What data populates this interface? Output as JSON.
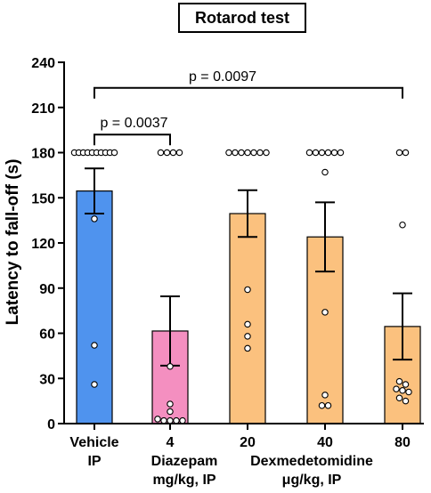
{
  "chart_data": {
    "type": "bar",
    "title": "Rotarod test",
    "ylabel": "Latency to fall-off (s)",
    "xlabel": "",
    "ylim": [
      0,
      240
    ],
    "yticks": [
      0,
      30,
      60,
      90,
      120,
      150,
      180,
      210,
      240
    ],
    "categories": [
      "Vehicle",
      "4",
      "20",
      "40",
      "80"
    ],
    "category_sublabels": [
      "IP",
      "",
      "",
      "",
      ""
    ],
    "group_labels": [
      {
        "line1": "Diazepam",
        "line2": "mg/kg, IP",
        "span": [
          1,
          1
        ]
      },
      {
        "line1": "Dexmedetomidine",
        "line2": "μg/kg, IP",
        "span": [
          2,
          4
        ]
      }
    ],
    "colors": [
      "#4f93ee",
      "#f48fc0",
      "#fbc17e",
      "#fbc17e",
      "#fbc17e"
    ],
    "values": [
      154.5,
      61.5,
      139.5,
      124,
      64.5
    ],
    "sem": [
      15,
      23,
      15.5,
      23,
      22
    ],
    "points": [
      [
        180,
        180,
        180,
        180,
        180,
        180,
        180,
        180,
        180,
        180,
        136,
        52,
        26
      ],
      [
        180,
        180,
        180,
        180,
        38,
        13,
        8,
        3,
        2,
        2,
        2,
        2
      ],
      [
        180,
        180,
        180,
        180,
        180,
        180,
        180,
        89,
        66,
        58,
        50
      ],
      [
        180,
        180,
        180,
        180,
        180,
        180,
        167,
        74,
        19,
        12,
        12
      ],
      [
        180,
        180,
        132,
        28,
        26,
        23,
        22,
        21,
        17,
        15
      ]
    ],
    "comparisons": [
      {
        "from": 0,
        "to": 1,
        "label": "p = 0.0037",
        "y": 192
      },
      {
        "from": 0,
        "to": 4,
        "label": "p = 0.0097",
        "y": 223
      }
    ]
  }
}
